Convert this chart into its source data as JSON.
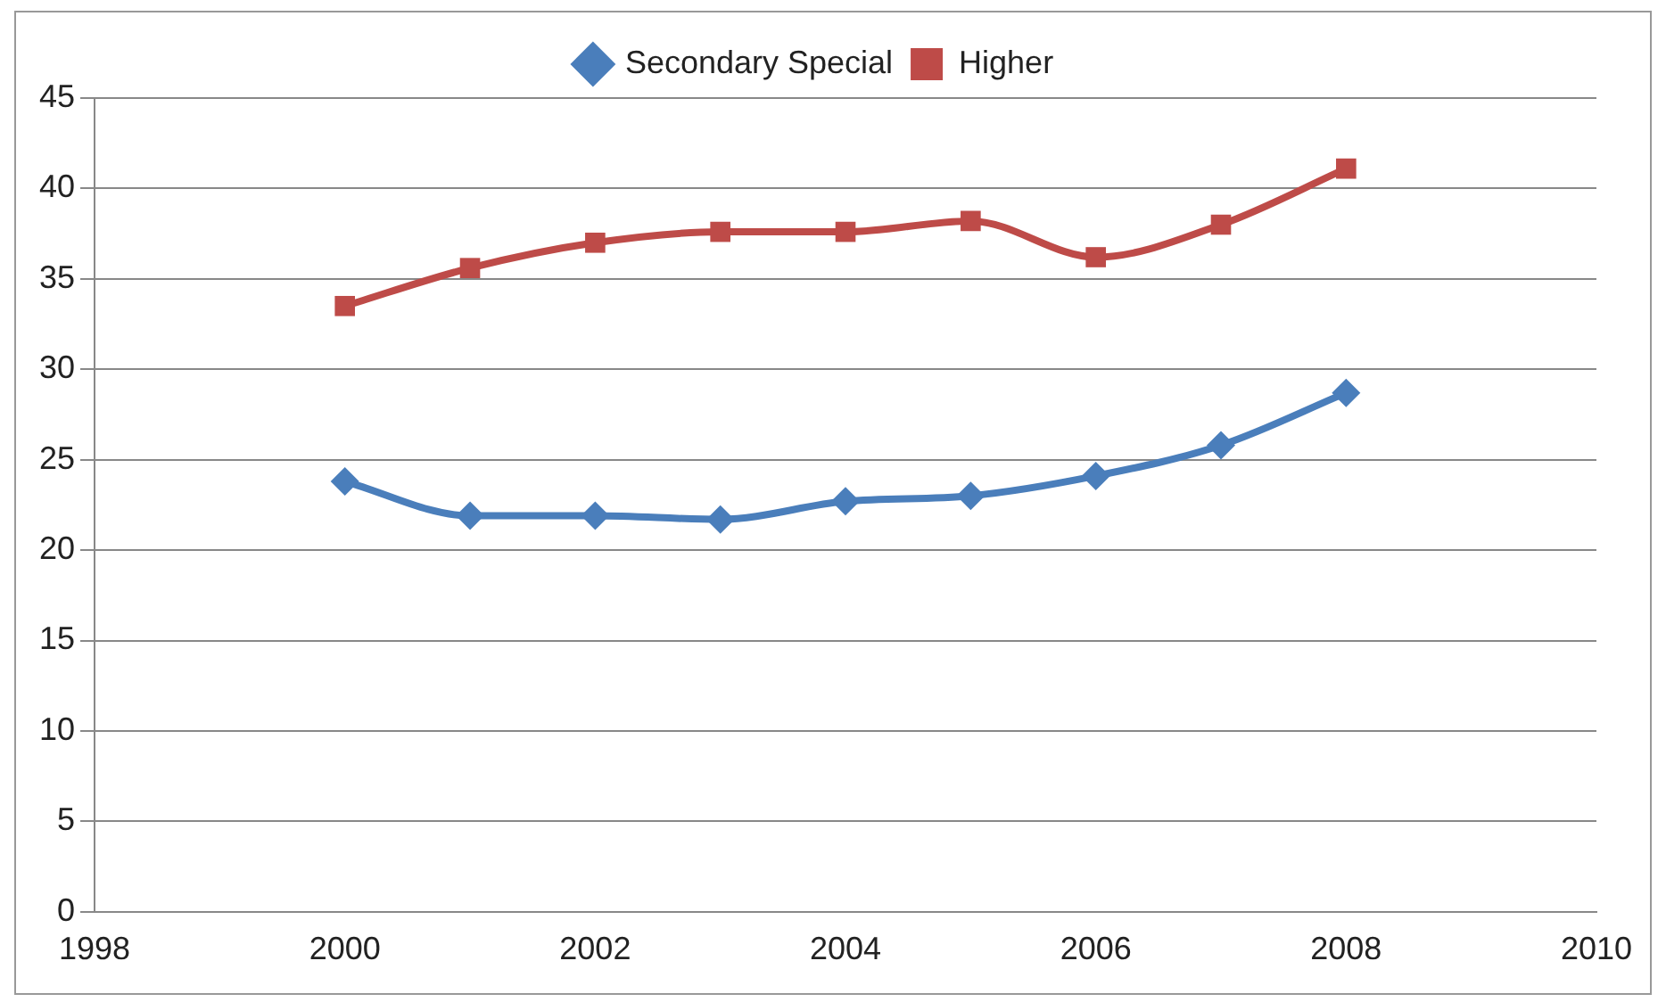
{
  "chart_data": {
    "type": "line",
    "x": [
      2000,
      2001,
      2002,
      2003,
      2004,
      2005,
      2006,
      2007,
      2008
    ],
    "series": [
      {
        "name": "Secondary Special",
        "color": "#4a7ebb",
        "marker": "diamond",
        "values": [
          23.8,
          21.9,
          21.9,
          21.7,
          22.7,
          23.0,
          24.1,
          25.8,
          28.7
        ]
      },
      {
        "name": "Higher",
        "color": "#be4b48",
        "marker": "square",
        "values": [
          33.5,
          35.6,
          37.0,
          37.6,
          37.6,
          38.2,
          36.2,
          38.0,
          41.1
        ]
      }
    ],
    "xlim": [
      1998,
      2010
    ],
    "xticks": [
      1998,
      2000,
      2002,
      2004,
      2006,
      2008,
      2010
    ],
    "ylim": [
      0,
      45
    ],
    "yticks": [
      0,
      5,
      10,
      15,
      20,
      25,
      30,
      35,
      40,
      45
    ],
    "grid": "y",
    "legend": "top",
    "line_style": "solid"
  }
}
